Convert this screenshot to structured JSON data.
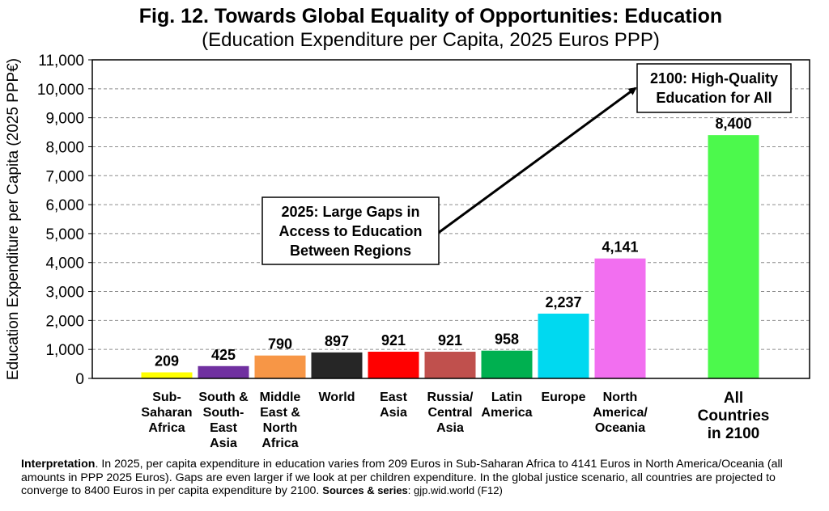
{
  "chart_data": {
    "type": "bar",
    "title": "Fig. 12. Towards Global Equality of Opportunities: Education",
    "subtitle": "(Education Expenditure per Capita, 2025 Euros PPP)",
    "ylabel": "Education Expenditure per Capita (2025 PPP€)",
    "ylim": [
      0,
      11000
    ],
    "yticks": [
      "0",
      "1,000",
      "2,000",
      "3,000",
      "4,000",
      "5,000",
      "6,000",
      "7,000",
      "8,000",
      "9,000",
      "10,000",
      "11,000"
    ],
    "grid": true,
    "categories": [
      {
        "lines": [
          "Sub-",
          "Saharan",
          "Africa"
        ]
      },
      {
        "lines": [
          "South &",
          "South-",
          "East",
          "Asia"
        ]
      },
      {
        "lines": [
          "Middle",
          "East &",
          "North",
          "Africa"
        ]
      },
      {
        "lines": [
          "World"
        ]
      },
      {
        "lines": [
          "East",
          "Asia"
        ]
      },
      {
        "lines": [
          "Russia/",
          "Central",
          "Asia"
        ]
      },
      {
        "lines": [
          "Latin",
          "America"
        ]
      },
      {
        "lines": [
          "Europe"
        ]
      },
      {
        "lines": [
          "North",
          "America/",
          "Oceania"
        ]
      },
      {
        "lines": [
          "All",
          "Countries",
          "in 2100"
        ]
      }
    ],
    "values": [
      209,
      425,
      790,
      897,
      921,
      921,
      958,
      2237,
      4141,
      8400
    ],
    "value_labels": [
      "209",
      "425",
      "790",
      "897",
      "921",
      "921",
      "958",
      "2,237",
      "4,141",
      "8,400"
    ],
    "colors": [
      "#ffff00",
      "#7030a0",
      "#f79646",
      "#262626",
      "#ff0000",
      "#c0504d",
      "#00b050",
      "#00d9f0",
      "#f26ff0",
      "#4cf94c"
    ],
    "annotations": [
      {
        "lines": [
          "2025: Large Gaps in",
          "Access to Education",
          "Between Regions"
        ]
      },
      {
        "lines": [
          "2100: High-Quality",
          "Education for All"
        ]
      }
    ]
  },
  "footnote": {
    "lead": "Interpretation",
    "text": ". In 2025, per capita expenditure in education varies from 209 Euros in Sub-Saharan Africa to 4141 Euros in North America/Oceania (all amounts in PPP 2025 Euros). Gaps are even larger if we look at per children expenditure. In the global justice scenario, all countries are projected to converge to 8400 Euros in per capita expenditure by 2100. ",
    "sources_label": "Sources & series",
    "sources_value": ": gjp.wid.world (F12)"
  }
}
